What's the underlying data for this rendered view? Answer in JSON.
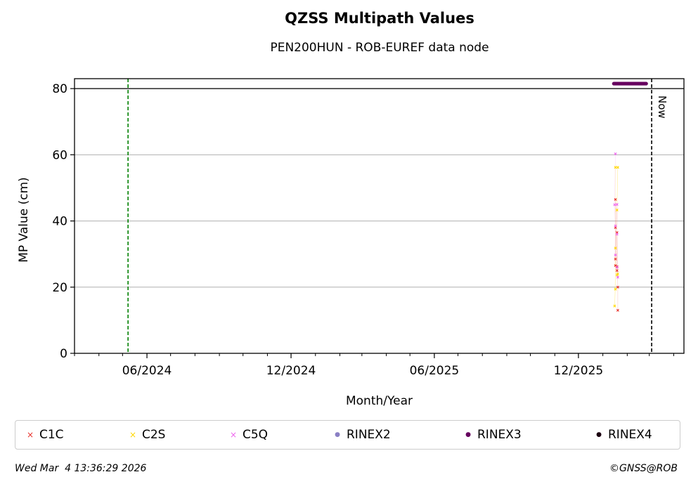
{
  "chart_data": {
    "type": "scatter",
    "title": "QZSS Multipath Values",
    "subtitle": "PEN200HUN - ROB-EUREF data node",
    "xlabel": "Month/Year",
    "ylabel": "MP Value (cm)",
    "x_tick_labels": [
      "06/2024",
      "12/2024",
      "06/2025",
      "12/2025"
    ],
    "x_tick_dates": [
      "2024-06-01",
      "2024-12-01",
      "2025-06-01",
      "2025-12-01"
    ],
    "xlim": [
      "2024-03-01",
      "2026-04-14"
    ],
    "y_ticks": [
      0,
      20,
      40,
      60,
      80
    ],
    "ylim": [
      0,
      83
    ],
    "grid": "y",
    "reference_lines": [
      {
        "date": "2024-05-08",
        "color": "#008000",
        "style": "dashed"
      },
      {
        "date": "2026-03-04",
        "color": "#000000",
        "style": "dashed",
        "label": "Now"
      }
    ],
    "hline": 80,
    "series": [
      {
        "name": "C1C",
        "color": "#e8302a",
        "marker": "x",
        "points": [
          [
            "2026-01-17",
            46.5
          ],
          [
            "2026-01-17",
            38.0
          ],
          [
            "2026-01-17",
            28.5
          ],
          [
            "2026-01-17",
            26.5
          ],
          [
            "2026-01-19",
            26.2
          ],
          [
            "2026-01-19",
            25.0
          ],
          [
            "2026-01-19",
            36.5
          ],
          [
            "2026-01-20",
            20.0
          ],
          [
            "2026-01-20",
            13.0
          ]
        ]
      },
      {
        "name": "C2S",
        "color": "#ffd700",
        "marker": "x",
        "points": [
          [
            "2026-01-17",
            56.2
          ],
          [
            "2026-01-17",
            31.8
          ],
          [
            "2026-01-17",
            19.4
          ],
          [
            "2026-01-16",
            14.3
          ],
          [
            "2026-01-20",
            56.2
          ],
          [
            "2026-01-19",
            43.3
          ],
          [
            "2026-01-19",
            23.7
          ],
          [
            "2026-01-20",
            24.0
          ]
        ]
      },
      {
        "name": "C5Q",
        "color": "#ee66ee",
        "marker": "x",
        "points": [
          [
            "2026-01-17",
            60.3
          ],
          [
            "2026-01-16",
            44.9
          ],
          [
            "2026-01-17",
            38.5
          ],
          [
            "2026-01-17",
            29.7
          ],
          [
            "2026-01-19",
            45.0
          ],
          [
            "2026-01-19",
            36.0
          ],
          [
            "2026-01-19",
            26.0
          ],
          [
            "2026-01-20",
            23.0
          ]
        ]
      },
      {
        "name": "RINEX2",
        "color": "#8a7fc4",
        "marker": "dot",
        "points": []
      },
      {
        "name": "RINEX3",
        "color": "#66005f",
        "marker": "dot",
        "y": 81.5,
        "points_dates": [
          "2026-01-15",
          "2026-01-16",
          "2026-01-17",
          "2026-01-18",
          "2026-01-19",
          "2026-01-20",
          "2026-01-21",
          "2026-01-22",
          "2026-01-23",
          "2026-01-24",
          "2026-01-25",
          "2026-01-26",
          "2026-01-27",
          "2026-01-28",
          "2026-01-29",
          "2026-01-30",
          "2026-01-31",
          "2026-02-01",
          "2026-02-02",
          "2026-02-03",
          "2026-02-04",
          "2026-02-05",
          "2026-02-06",
          "2026-02-07",
          "2026-02-08",
          "2026-02-09",
          "2026-02-10",
          "2026-02-11",
          "2026-02-12",
          "2026-02-13",
          "2026-02-14",
          "2026-02-15",
          "2026-02-16",
          "2026-02-17",
          "2026-02-18",
          "2026-02-19",
          "2026-02-20",
          "2026-02-21",
          "2026-02-22",
          "2026-02-23",
          "2026-02-24",
          "2026-02-25"
        ]
      },
      {
        "name": "RINEX4",
        "color": "#1a0010",
        "marker": "dot",
        "points": []
      }
    ]
  },
  "footer": {
    "timestamp": "Wed Mar  4 13:36:29 2026",
    "copyright": "©GNSS@ROB"
  },
  "legend": {
    "items": [
      {
        "label": "C1C",
        "marker": "×",
        "color": "#e8302a"
      },
      {
        "label": "C2S",
        "marker": "×",
        "color": "#ffd700"
      },
      {
        "label": "C5Q",
        "marker": "×",
        "color": "#ee66ee"
      },
      {
        "label": "RINEX2",
        "marker": "●",
        "color": "#8a7fc4"
      },
      {
        "label": "RINEX3",
        "marker": "●",
        "color": "#66005f"
      },
      {
        "label": "RINEX4",
        "marker": "●",
        "color": "#1a0010"
      }
    ]
  }
}
